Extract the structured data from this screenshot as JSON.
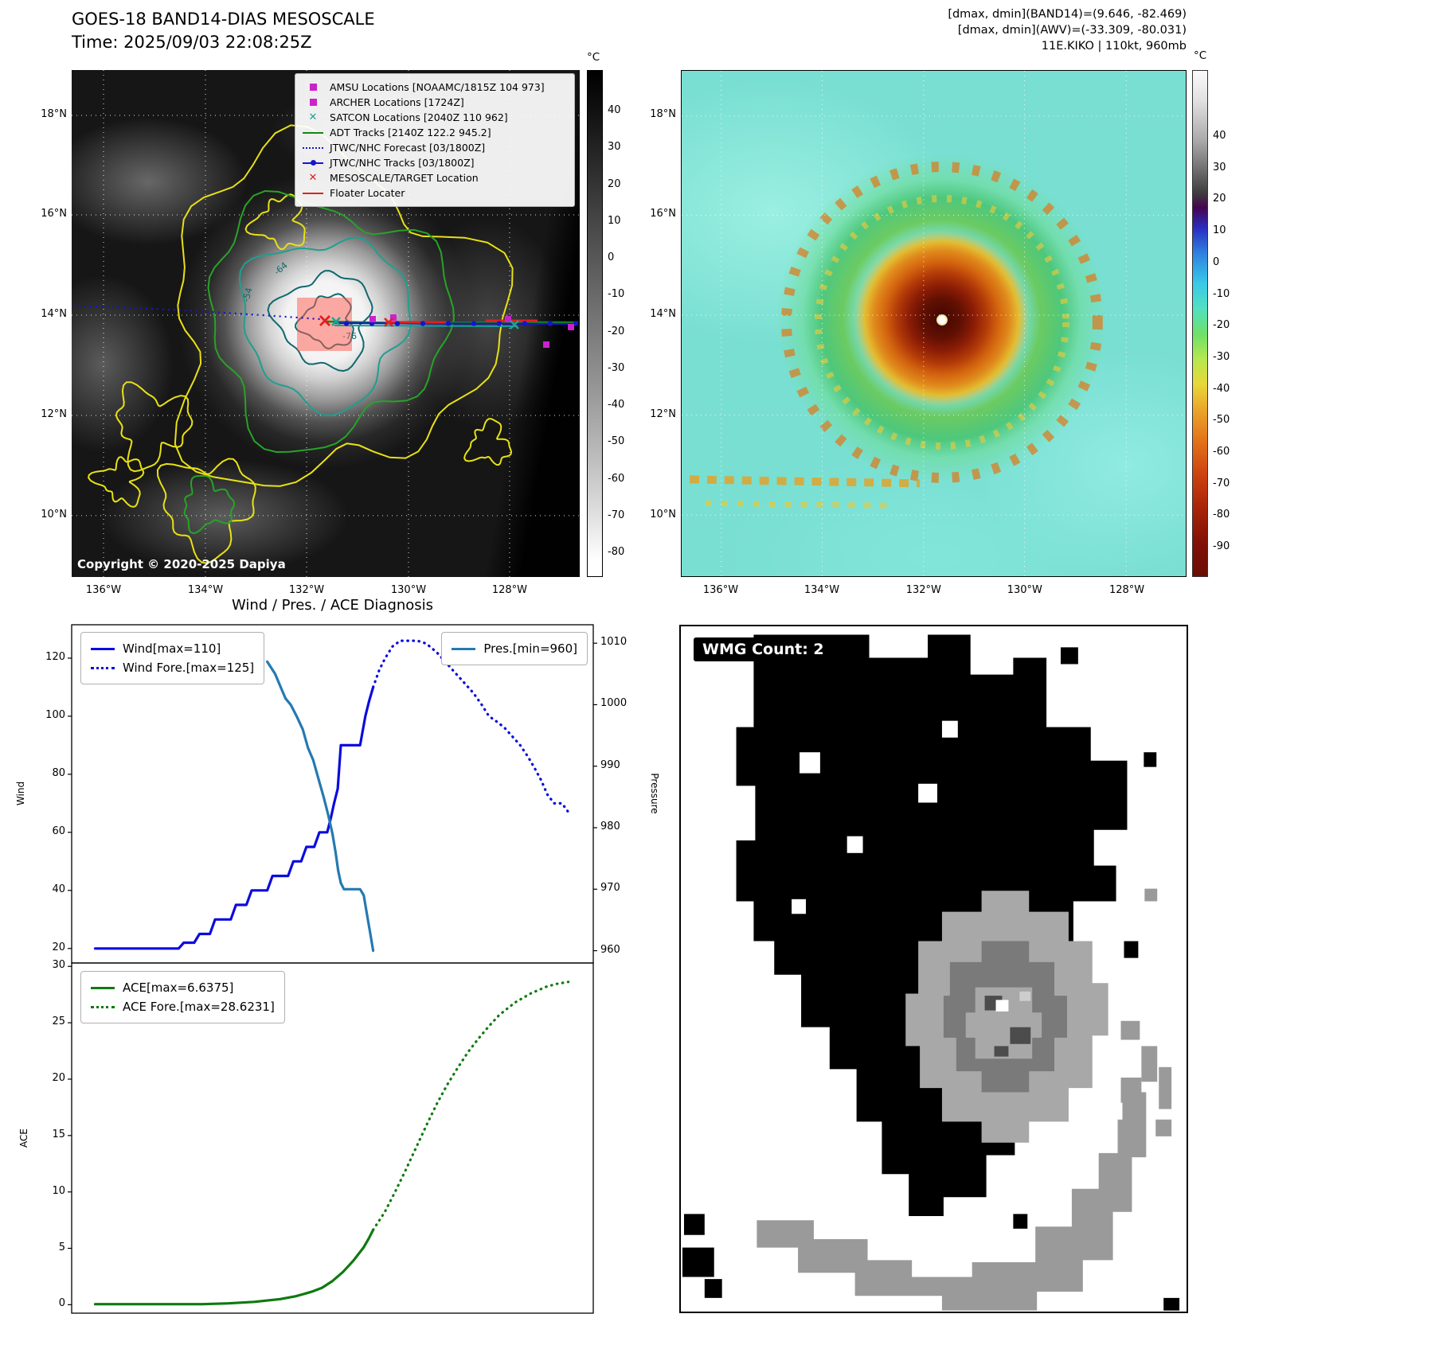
{
  "left_map": {
    "title": "GOES-18 BAND14-DIAS MESOSCALE",
    "subtitle": "Time: 2025/09/03 22:08:25Z",
    "copyright": "Copyright © 2020-2025 Dapiya",
    "lat_ticks": [
      "18°N",
      "16°N",
      "14°N",
      "12°N",
      "10°N"
    ],
    "lon_ticks": [
      "136°W",
      "134°W",
      "132°W",
      "130°W",
      "128°W"
    ],
    "colorbar": {
      "unit": "°C",
      "ticks": [
        "40",
        "30",
        "20",
        "10",
        "0",
        "-10",
        "-20",
        "-30",
        "-40",
        "-50",
        "-60",
        "-70",
        "-80"
      ]
    },
    "contour_labels": [
      "-54",
      "-64",
      "-76"
    ],
    "legend": [
      {
        "label": "AMSU Locations [NOAAMC/1815Z 104 973]",
        "marker": "square",
        "color": "#cc22cc"
      },
      {
        "label": "ARCHER Locations [1724Z]",
        "marker": "square",
        "color": "#cc22cc"
      },
      {
        "label": "SATCON Locations [2040Z 110 962]",
        "marker": "x",
        "color": "#1fa396"
      },
      {
        "label": "ADT Tracks [2140Z 122.2 945.2]",
        "marker": "line",
        "color": "#118811"
      },
      {
        "label": "JTWC/NHC Forecast [03/1800Z]",
        "marker": "dotted",
        "color": "#1515cc"
      },
      {
        "label": "JTWC/NHC Tracks [03/1800Z]",
        "marker": "line-dot",
        "color": "#1515cc"
      },
      {
        "label": "MESOSCALE/TARGET Location",
        "marker": "x",
        "color": "#e02020"
      },
      {
        "label": "Floater Locater",
        "marker": "line",
        "color": "#e02020"
      }
    ]
  },
  "right_map": {
    "info_lines": [
      "[dmax, dmin](BAND14)=(9.646, -82.469)",
      "[dmax, dmin](AWV)=(-33.309, -80.031)",
      "11E.KIKO | 110kt, 960mb"
    ],
    "lat_ticks": [
      "18°N",
      "16°N",
      "14°N",
      "12°N",
      "10°N"
    ],
    "lon_ticks": [
      "136°W",
      "134°W",
      "132°W",
      "130°W",
      "128°W"
    ],
    "colorbar": {
      "unit": "°C",
      "ticks": [
        "40",
        "30",
        "20",
        "10",
        "0",
        "-10",
        "-20",
        "-30",
        "-40",
        "-50",
        "-60",
        "-70",
        "-80",
        "-90"
      ]
    }
  },
  "diagnosis": {
    "title": "Wind / Pres. / ACE Diagnosis",
    "wind_axis_label": "Wind",
    "pressure_axis_label": "Pressure",
    "ace_axis_label": "ACE"
  },
  "wmg": {
    "label": "WMG Count: 2"
  },
  "chart_data": [
    {
      "type": "line",
      "title": "Wind / Pres. / ACE Diagnosis",
      "xlim": [
        0,
        1
      ],
      "ylabel": "Wind",
      "y2label": "Pressure",
      "ylim": [
        15,
        131.5
      ],
      "y2lim": [
        958,
        1013
      ],
      "yticks": [
        20,
        40,
        60,
        80,
        100,
        120
      ],
      "y2ticks": [
        960,
        970,
        980,
        990,
        1000,
        1010
      ],
      "grid": false,
      "legend_position": {
        "wind": "upper left",
        "pressure": "upper right"
      },
      "series": [
        {
          "name": "Wind[max=110]",
          "axis": "left",
          "style": "solid",
          "color": "#0b0bdf",
          "points": [
            [
              0.045,
              20
            ],
            [
              0.205,
              20
            ],
            [
              0.215,
              22
            ],
            [
              0.235,
              22
            ],
            [
              0.245,
              25
            ],
            [
              0.265,
              25
            ],
            [
              0.275,
              30
            ],
            [
              0.305,
              30
            ],
            [
              0.315,
              35
            ],
            [
              0.335,
              35
            ],
            [
              0.345,
              40
            ],
            [
              0.375,
              40
            ],
            [
              0.385,
              45
            ],
            [
              0.415,
              45
            ],
            [
              0.425,
              50
            ],
            [
              0.44,
              50
            ],
            [
              0.45,
              55
            ],
            [
              0.465,
              55
            ],
            [
              0.475,
              60
            ],
            [
              0.49,
              60
            ],
            [
              0.497,
              65
            ],
            [
              0.503,
              70
            ],
            [
              0.51,
              75
            ],
            [
              0.516,
              90
            ],
            [
              0.553,
              90
            ],
            [
              0.563,
              100
            ],
            [
              0.57,
              105
            ],
            [
              0.578,
              110
            ]
          ]
        },
        {
          "name": "Wind Fore.[max=125]",
          "axis": "left",
          "style": "dotted",
          "color": "#0b0bdf",
          "points": [
            [
              0.578,
              110
            ],
            [
              0.59,
              116
            ],
            [
              0.601,
              120
            ],
            [
              0.615,
              124
            ],
            [
              0.63,
              126
            ],
            [
              0.663,
              126
            ],
            [
              0.68,
              125
            ],
            [
              0.7,
              122
            ],
            [
              0.715,
              119
            ],
            [
              0.73,
              116
            ],
            [
              0.75,
              112
            ],
            [
              0.77,
              108
            ],
            [
              0.786,
              104
            ],
            [
              0.8,
              100
            ],
            [
              0.816,
              98
            ],
            [
              0.83,
              96
            ],
            [
              0.845,
              93
            ],
            [
              0.86,
              90
            ],
            [
              0.875,
              86
            ],
            [
              0.888,
              82
            ],
            [
              0.9,
              78
            ],
            [
              0.912,
              73
            ],
            [
              0.925,
              70
            ],
            [
              0.94,
              70
            ],
            [
              0.952,
              67
            ]
          ]
        },
        {
          "name": "Pres.[min=960]",
          "axis": "right",
          "style": "solid",
          "color": "#2579b2",
          "points": [
            [
              0.375,
              1007
            ],
            [
              0.39,
              1005
            ],
            [
              0.4,
              1003
            ],
            [
              0.41,
              1001
            ],
            [
              0.42,
              1000
            ],
            [
              0.432,
              998
            ],
            [
              0.443,
              996
            ],
            [
              0.453,
              993
            ],
            [
              0.463,
              991
            ],
            [
              0.473,
              988
            ],
            [
              0.483,
              985
            ],
            [
              0.492,
              982
            ],
            [
              0.5,
              979
            ],
            [
              0.506,
              976
            ],
            [
              0.511,
              973
            ],
            [
              0.516,
              971
            ],
            [
              0.522,
              970
            ],
            [
              0.553,
              970
            ],
            [
              0.56,
              969
            ],
            [
              0.566,
              966
            ],
            [
              0.572,
              963
            ],
            [
              0.578,
              960
            ]
          ]
        }
      ]
    },
    {
      "type": "line",
      "xlim": [
        0,
        1
      ],
      "ylabel": "ACE",
      "ylim": [
        -0.75,
        30.3
      ],
      "yticks": [
        0,
        5,
        10,
        15,
        20,
        25,
        30
      ],
      "grid": false,
      "series": [
        {
          "name": "ACE[max=6.6375]",
          "axis": "left",
          "style": "solid",
          "color": "#0e7a0e",
          "points": [
            [
              0.045,
              0.05
            ],
            [
              0.25,
              0.05
            ],
            [
              0.3,
              0.12
            ],
            [
              0.35,
              0.25
            ],
            [
              0.4,
              0.5
            ],
            [
              0.43,
              0.75
            ],
            [
              0.46,
              1.15
            ],
            [
              0.48,
              1.5
            ],
            [
              0.5,
              2.1
            ],
            [
              0.52,
              2.9
            ],
            [
              0.54,
              3.9
            ],
            [
              0.56,
              5.1
            ],
            [
              0.57,
              5.9
            ],
            [
              0.578,
              6.6375
            ]
          ]
        },
        {
          "name": "ACE Fore.[max=28.6231]",
          "axis": "left",
          "style": "dotted",
          "color": "#0e7a0e",
          "points": [
            [
              0.578,
              6.6375
            ],
            [
              0.6,
              8.2
            ],
            [
              0.62,
              10.0
            ],
            [
              0.64,
              11.9
            ],
            [
              0.66,
              13.9
            ],
            [
              0.68,
              15.9
            ],
            [
              0.7,
              17.8
            ],
            [
              0.72,
              19.5
            ],
            [
              0.74,
              21.0
            ],
            [
              0.76,
              22.4
            ],
            [
              0.78,
              23.6
            ],
            [
              0.8,
              24.7
            ],
            [
              0.82,
              25.7
            ],
            [
              0.85,
              26.8
            ],
            [
              0.88,
              27.6
            ],
            [
              0.91,
              28.2
            ],
            [
              0.93,
              28.45
            ],
            [
              0.952,
              28.6231
            ]
          ]
        }
      ]
    }
  ]
}
